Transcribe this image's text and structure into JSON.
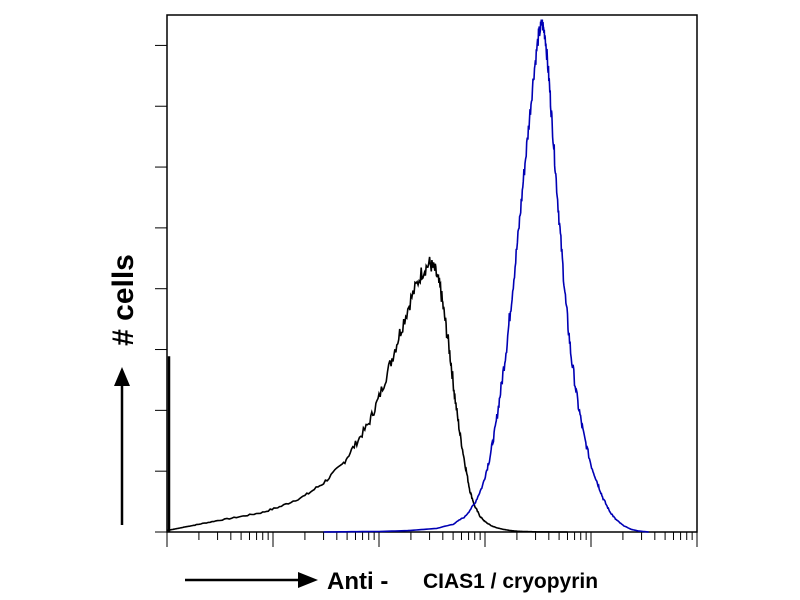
{
  "chart_data": {
    "type": "line",
    "title": "",
    "ylabel": "# cells",
    "xlabel_main": "Anti -",
    "xlabel_sub": "CIAS1 / cryopyrin",
    "x_scale": "log",
    "xlim": [
      1,
      100000
    ],
    "ylim": [
      0,
      100
    ],
    "grid": false,
    "legend": "none",
    "series": [
      {
        "color": "#000000",
        "x": [
          1.0,
          1.2,
          1.5,
          2,
          3,
          5,
          8,
          12,
          20,
          30,
          45,
          60,
          80,
          100,
          130,
          160,
          200,
          250,
          300,
          340,
          380,
          420,
          470,
          520,
          580,
          650,
          720,
          800,
          900,
          1000,
          1150,
          1300,
          1500,
          1700,
          2000,
          2400,
          3000,
          4000,
          6000
        ],
        "y": [
          0.3,
          0.6,
          1.0,
          1.5,
          2.2,
          3.0,
          3.8,
          5.0,
          7.0,
          9.5,
          13.0,
          17.0,
          21.0,
          26.0,
          33.0,
          39.0,
          45.0,
          50.0,
          52.0,
          50.5,
          47.0,
          41.0,
          34.0,
          26.0,
          19.0,
          13.0,
          8.0,
          5.0,
          3.0,
          2.0,
          1.2,
          0.8,
          0.5,
          0.3,
          0.15,
          0.08,
          0.03,
          0.01,
          0.0
        ]
      },
      {
        "color": "#0000b4",
        "x": [
          30,
          100,
          200,
          350,
          500,
          650,
          800,
          950,
          1100,
          1250,
          1400,
          1600,
          1800,
          2050,
          2300,
          2600,
          2900,
          3200,
          3450,
          3700,
          4000,
          4300,
          4700,
          5200,
          5800,
          6500,
          7500,
          8500,
          10000,
          11500,
          13000,
          15000,
          17000,
          20000,
          24000,
          28000,
          35000
        ],
        "y": [
          0.0,
          0.1,
          0.3,
          0.7,
          1.5,
          3.0,
          5.5,
          9.0,
          14.0,
          20.0,
          27.0,
          36.0,
          46.0,
          57.0,
          68.0,
          79.0,
          89.0,
          96.0,
          98.5,
          96.0,
          88.0,
          79.0,
          68.0,
          56.0,
          44.0,
          34.0,
          25.0,
          19.0,
          13.0,
          9.5,
          6.5,
          4.0,
          2.5,
          1.3,
          0.5,
          0.2,
          0.0
        ]
      }
    ]
  }
}
